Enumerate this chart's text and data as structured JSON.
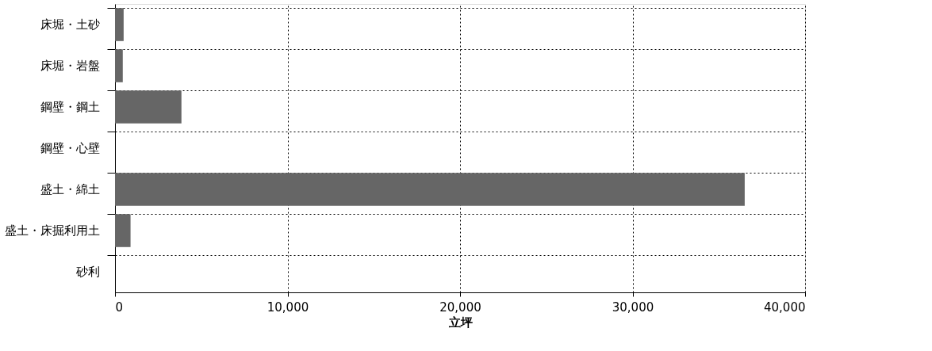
{
  "chart_data": {
    "type": "bar",
    "orientation": "horizontal",
    "xlabel": "立坪",
    "categories": [
      "床堀・土砂",
      "床堀・岩盤",
      "鋼壁・鋼土",
      "鋼壁・心壁",
      "盛土・綿土",
      "盛土・床掘利用土",
      "砂利"
    ],
    "values": [
      500,
      450,
      3850,
      0,
      36500,
      900,
      0
    ],
    "color": "#666666",
    "xlim": [
      0,
      40000
    ],
    "xticks": [
      0,
      {
        "value": 10000,
        "label": "10,000"
      },
      {
        "value": 20000,
        "label": "20,000"
      },
      {
        "value": 30000,
        "label": "30,000"
      },
      {
        "value": 40000,
        "label": "40,000"
      }
    ],
    "grid": true,
    "line_style": "dotted"
  }
}
